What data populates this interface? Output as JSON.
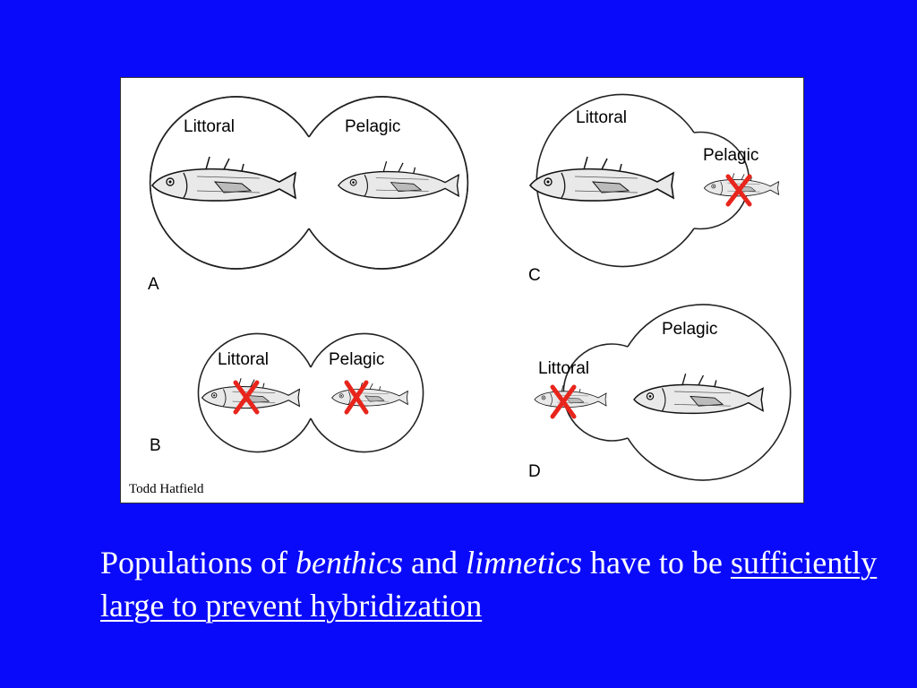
{
  "figure": {
    "credit": "Todd Hatfield",
    "panels": [
      {
        "id": "A",
        "left_label": "Littoral",
        "right_label": "Pelagic"
      },
      {
        "id": "B",
        "left_label": "Littoral",
        "right_label": "Pelagic"
      },
      {
        "id": "C",
        "left_label": "Littoral",
        "right_label": "Pelagic"
      },
      {
        "id": "D",
        "left_label": "Littoral",
        "right_label": "Pelagic"
      }
    ],
    "colors": {
      "background": "#0a0afa",
      "cross": "#e8251c",
      "caption": "#ffffff"
    }
  },
  "caption": {
    "part1": "Populations of ",
    "benthics": "benthics",
    "and": " and ",
    "limnetics": "limnetics",
    "part2": " have to be ",
    "underlined": "sufficiently large to prevent hybridization"
  }
}
